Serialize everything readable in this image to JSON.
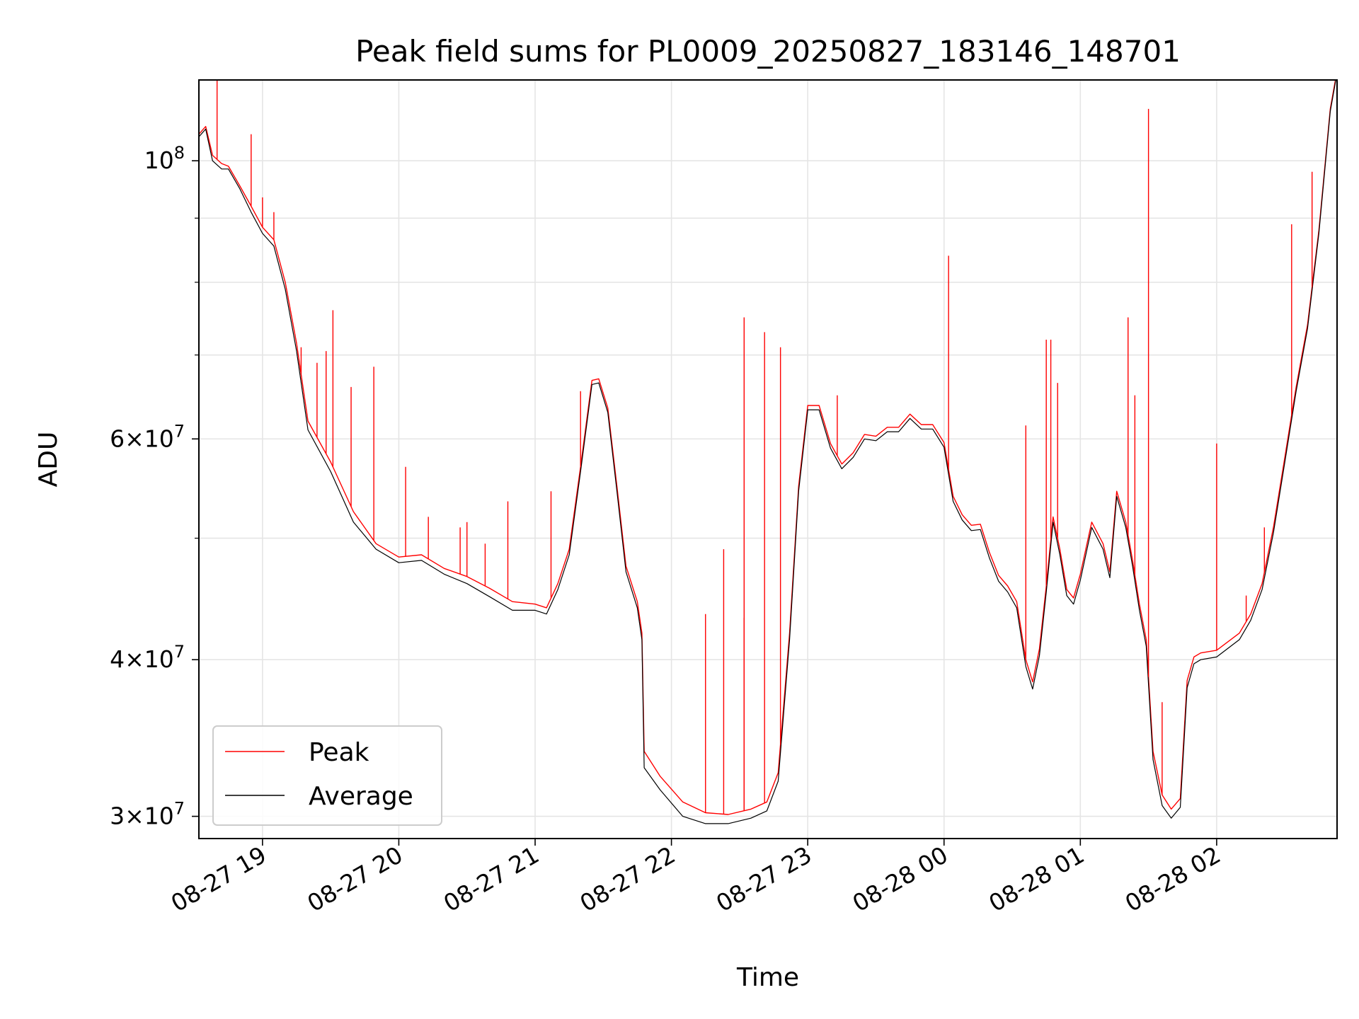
{
  "chart_data": {
    "type": "line",
    "title": "Peak field sums for PL0009_20250827_183146_148701",
    "xlabel": "Time",
    "ylabel": "ADU",
    "y_scale": "log",
    "ylim": [
      28800000,
      116000000
    ],
    "xlim": [
      "2025-08-27 18:32",
      "2025-08-28 02:53"
    ],
    "grid": true,
    "legend_placement": "lower-left",
    "x_ticks": [
      {
        "at": "2025-08-27 19:00",
        "label": "08-27 19"
      },
      {
        "at": "2025-08-27 20:00",
        "label": "08-27 20"
      },
      {
        "at": "2025-08-27 21:00",
        "label": "08-27 21"
      },
      {
        "at": "2025-08-27 22:00",
        "label": "08-27 22"
      },
      {
        "at": "2025-08-27 23:00",
        "label": "08-27 23"
      },
      {
        "at": "2025-08-28 00:00",
        "label": "08-28 00"
      },
      {
        "at": "2025-08-28 01:00",
        "label": "08-28 01"
      },
      {
        "at": "2025-08-28 02:00",
        "label": "08-28 02"
      }
    ],
    "y_ticks_major": [
      {
        "value": 100000000,
        "base": "10",
        "exp": "8"
      },
      {
        "value": 60000000,
        "mant": "6",
        "base": "10",
        "exp": "7"
      },
      {
        "value": 40000000,
        "mant": "4",
        "base": "10",
        "exp": "7"
      },
      {
        "value": 30000000,
        "mant": "3",
        "base": "10",
        "exp": "7"
      }
    ],
    "y_ticks_minor": [
      90000000,
      80000000,
      70000000,
      50000000
    ],
    "series": [
      {
        "name": "Peak",
        "color": "#ff0000",
        "x": [
          "2025-08-27 18:32",
          "2025-08-27 18:35",
          "2025-08-27 18:38",
          "2025-08-27 18:42",
          "2025-08-27 18:45",
          "2025-08-27 18:50",
          "2025-08-27 18:55",
          "2025-08-27 19:00",
          "2025-08-27 19:05",
          "2025-08-27 19:10",
          "2025-08-27 19:15",
          "2025-08-27 19:20",
          "2025-08-27 19:30",
          "2025-08-27 19:40",
          "2025-08-27 19:50",
          "2025-08-27 20:00",
          "2025-08-27 20:10",
          "2025-08-27 20:20",
          "2025-08-27 20:30",
          "2025-08-27 20:40",
          "2025-08-27 20:50",
          "2025-08-27 21:00",
          "2025-08-27 21:05",
          "2025-08-27 21:10",
          "2025-08-27 21:15",
          "2025-08-27 21:20",
          "2025-08-27 21:25",
          "2025-08-27 21:28",
          "2025-08-27 21:32",
          "2025-08-27 21:36",
          "2025-08-27 21:40",
          "2025-08-27 21:45",
          "2025-08-27 21:47",
          "2025-08-27 21:48",
          "2025-08-27 21:55",
          "2025-08-27 22:05",
          "2025-08-27 22:15",
          "2025-08-27 22:25",
          "2025-08-27 22:35",
          "2025-08-27 22:42",
          "2025-08-27 22:47",
          "2025-08-27 22:52",
          "2025-08-27 22:56",
          "2025-08-27 23:00",
          "2025-08-27 23:05",
          "2025-08-27 23:10",
          "2025-08-27 23:15",
          "2025-08-27 23:20",
          "2025-08-27 23:25",
          "2025-08-27 23:30",
          "2025-08-27 23:35",
          "2025-08-27 23:40",
          "2025-08-27 23:45",
          "2025-08-27 23:50",
          "2025-08-27 23:55",
          "2025-08-28 00:00",
          "2025-08-28 00:04",
          "2025-08-28 00:08",
          "2025-08-28 00:12",
          "2025-08-28 00:16",
          "2025-08-28 00:20",
          "2025-08-28 00:24",
          "2025-08-28 00:28",
          "2025-08-28 00:32",
          "2025-08-28 00:36",
          "2025-08-28 00:39",
          "2025-08-28 00:42",
          "2025-08-28 00:45",
          "2025-08-28 00:48",
          "2025-08-28 00:51",
          "2025-08-28 00:54",
          "2025-08-28 00:57",
          "2025-08-28 01:00",
          "2025-08-28 01:05",
          "2025-08-28 01:10",
          "2025-08-28 01:13",
          "2025-08-28 01:16",
          "2025-08-28 01:20",
          "2025-08-28 01:23",
          "2025-08-28 01:26",
          "2025-08-28 01:29",
          "2025-08-28 01:32",
          "2025-08-28 01:36",
          "2025-08-28 01:40",
          "2025-08-28 01:44",
          "2025-08-28 01:47",
          "2025-08-28 01:50",
          "2025-08-28 01:53",
          "2025-08-28 02:00",
          "2025-08-28 02:10",
          "2025-08-28 02:15",
          "2025-08-28 02:20",
          "2025-08-28 02:25",
          "2025-08-28 02:30",
          "2025-08-28 02:35",
          "2025-08-28 02:40",
          "2025-08-28 02:45",
          "2025-08-28 02:50",
          "2025-08-28 02:53"
        ],
        "y": [
          105000000,
          106500000,
          101000000,
          99500000,
          99000000,
          95500000,
          92000000,
          88500000,
          86500000,
          80000000,
          71500000,
          62000000,
          57500000,
          52500000,
          49500000,
          48300000,
          48500000,
          47300000,
          46600000,
          45600000,
          44500000,
          44300000,
          44000000,
          46000000,
          49000000,
          57000000,
          66800000,
          67000000,
          63500000,
          55000000,
          47500000,
          44500000,
          42000000,
          33800000,
          32300000,
          30800000,
          30200000,
          30100000,
          30400000,
          30800000,
          32500000,
          42000000,
          55000000,
          63800000,
          63800000,
          59500000,
          57300000,
          58500000,
          60500000,
          60300000,
          61300000,
          61300000,
          62800000,
          61600000,
          61600000,
          59600000,
          54000000,
          52200000,
          51200000,
          51300000,
          48700000,
          46700000,
          45800000,
          44500000,
          40000000,
          38400000,
          40800000,
          45800000,
          52000000,
          49000000,
          45500000,
          44800000,
          46800000,
          51500000,
          49500000,
          47000000,
          54500000,
          51500000,
          48000000,
          44300000,
          41500000,
          33800000,
          31200000,
          30400000,
          31000000,
          38500000,
          40200000,
          40500000,
          40700000,
          42000000,
          43500000,
          46000000,
          51000000,
          58000000,
          66000000,
          74000000,
          88000000,
          110000000,
          118000000
        ]
      },
      {
        "name": "Average",
        "color": "#000000",
        "x": [
          "2025-08-27 18:32",
          "2025-08-27 18:35",
          "2025-08-27 18:38",
          "2025-08-27 18:42",
          "2025-08-27 18:45",
          "2025-08-27 18:50",
          "2025-08-27 18:55",
          "2025-08-27 19:00",
          "2025-08-27 19:05",
          "2025-08-27 19:10",
          "2025-08-27 19:15",
          "2025-08-27 19:20",
          "2025-08-27 19:30",
          "2025-08-27 19:40",
          "2025-08-27 19:50",
          "2025-08-27 20:00",
          "2025-08-27 20:10",
          "2025-08-27 20:20",
          "2025-08-27 20:30",
          "2025-08-27 20:40",
          "2025-08-27 20:50",
          "2025-08-27 21:00",
          "2025-08-27 21:05",
          "2025-08-27 21:10",
          "2025-08-27 21:15",
          "2025-08-27 21:20",
          "2025-08-27 21:25",
          "2025-08-27 21:28",
          "2025-08-27 21:32",
          "2025-08-27 21:36",
          "2025-08-27 21:40",
          "2025-08-27 21:45",
          "2025-08-27 21:47",
          "2025-08-27 21:48",
          "2025-08-27 21:55",
          "2025-08-27 22:05",
          "2025-08-27 22:15",
          "2025-08-27 22:25",
          "2025-08-27 22:35",
          "2025-08-27 22:42",
          "2025-08-27 22:47",
          "2025-08-27 22:52",
          "2025-08-27 22:56",
          "2025-08-27 23:00",
          "2025-08-27 23:05",
          "2025-08-27 23:10",
          "2025-08-27 23:15",
          "2025-08-27 23:20",
          "2025-08-27 23:25",
          "2025-08-27 23:30",
          "2025-08-27 23:35",
          "2025-08-27 23:40",
          "2025-08-27 23:45",
          "2025-08-27 23:50",
          "2025-08-27 23:55",
          "2025-08-28 00:00",
          "2025-08-28 00:04",
          "2025-08-28 00:08",
          "2025-08-28 00:12",
          "2025-08-28 00:16",
          "2025-08-28 00:20",
          "2025-08-28 00:24",
          "2025-08-28 00:28",
          "2025-08-28 00:32",
          "2025-08-28 00:36",
          "2025-08-28 00:39",
          "2025-08-28 00:42",
          "2025-08-28 00:45",
          "2025-08-28 00:48",
          "2025-08-28 00:51",
          "2025-08-28 00:54",
          "2025-08-28 00:57",
          "2025-08-28 01:00",
          "2025-08-28 01:05",
          "2025-08-28 01:10",
          "2025-08-28 01:13",
          "2025-08-28 01:16",
          "2025-08-28 01:20",
          "2025-08-28 01:23",
          "2025-08-28 01:26",
          "2025-08-28 01:29",
          "2025-08-28 01:32",
          "2025-08-28 01:36",
          "2025-08-28 01:40",
          "2025-08-28 01:44",
          "2025-08-28 01:47",
          "2025-08-28 01:50",
          "2025-08-28 01:53",
          "2025-08-28 02:00",
          "2025-08-28 02:10",
          "2025-08-28 02:15",
          "2025-08-28 02:20",
          "2025-08-28 02:25",
          "2025-08-28 02:30",
          "2025-08-28 02:35",
          "2025-08-28 02:40",
          "2025-08-28 02:45",
          "2025-08-28 02:50",
          "2025-08-28 02:53"
        ],
        "y": [
          104500000,
          106000000,
          100000000,
          98500000,
          98500000,
          95000000,
          91000000,
          87500000,
          85500000,
          79000000,
          70500000,
          61000000,
          56500000,
          51500000,
          49000000,
          47800000,
          48000000,
          46800000,
          46000000,
          44900000,
          43800000,
          43800000,
          43500000,
          45500000,
          48500000,
          56500000,
          66300000,
          66500000,
          63000000,
          54500000,
          47000000,
          44000000,
          41500000,
          32800000,
          31500000,
          30000000,
          29600000,
          29600000,
          29900000,
          30300000,
          32000000,
          41500000,
          54500000,
          63300000,
          63300000,
          59000000,
          56800000,
          58000000,
          60000000,
          59800000,
          60800000,
          60800000,
          62300000,
          61100000,
          61100000,
          59100000,
          53500000,
          51700000,
          50700000,
          50800000,
          48200000,
          46200000,
          45300000,
          44000000,
          39500000,
          37900000,
          40300000,
          45300000,
          51500000,
          48500000,
          45000000,
          44300000,
          46300000,
          51000000,
          49000000,
          46500000,
          54000000,
          51000000,
          47500000,
          43800000,
          41000000,
          33300000,
          30600000,
          29900000,
          30500000,
          38000000,
          39700000,
          40000000,
          40200000,
          41500000,
          43000000,
          45500000,
          50500000,
          57500000,
          65500000,
          73500000,
          87500000,
          109500000,
          117500000
        ]
      }
    ],
    "peak_spikes": [
      {
        "x": "2025-08-27 18:40",
        "y": 116000000
      },
      {
        "x": "2025-08-27 18:55",
        "y": 105000000
      },
      {
        "x": "2025-08-27 19:00",
        "y": 93500000
      },
      {
        "x": "2025-08-27 19:05",
        "y": 91000000
      },
      {
        "x": "2025-08-27 19:17",
        "y": 71000000
      },
      {
        "x": "2025-08-27 19:24",
        "y": 69000000
      },
      {
        "x": "2025-08-27 19:28",
        "y": 70500000
      },
      {
        "x": "2025-08-27 19:31",
        "y": 76000000
      },
      {
        "x": "2025-08-27 19:39",
        "y": 66000000
      },
      {
        "x": "2025-08-27 19:49",
        "y": 68500000
      },
      {
        "x": "2025-08-27 20:03",
        "y": 57000000
      },
      {
        "x": "2025-08-27 20:13",
        "y": 52000000
      },
      {
        "x": "2025-08-27 20:27",
        "y": 51000000
      },
      {
        "x": "2025-08-27 20:30",
        "y": 51500000
      },
      {
        "x": "2025-08-27 20:38",
        "y": 49500000
      },
      {
        "x": "2025-08-27 20:48",
        "y": 53500000
      },
      {
        "x": "2025-08-27 21:07",
        "y": 54500000
      },
      {
        "x": "2025-08-27 21:20",
        "y": 65500000
      },
      {
        "x": "2025-08-27 22:15",
        "y": 43500000
      },
      {
        "x": "2025-08-27 22:23",
        "y": 49000000
      },
      {
        "x": "2025-08-27 22:32",
        "y": 43200000
      },
      {
        "x": "2025-08-27 22:32",
        "y": 75000000
      },
      {
        "x": "2025-08-27 22:41",
        "y": 73000000
      },
      {
        "x": "2025-08-27 22:48",
        "y": 71000000
      },
      {
        "x": "2025-08-27 23:13",
        "y": 65000000
      },
      {
        "x": "2025-08-28 00:02",
        "y": 84000000
      },
      {
        "x": "2025-08-28 00:36",
        "y": 61500000
      },
      {
        "x": "2025-08-28 00:45",
        "y": 72000000
      },
      {
        "x": "2025-08-28 00:47",
        "y": 72000000
      },
      {
        "x": "2025-08-28 00:50",
        "y": 66500000
      },
      {
        "x": "2025-08-28 01:21",
        "y": 75000000
      },
      {
        "x": "2025-08-28 01:24",
        "y": 65000000
      },
      {
        "x": "2025-08-28 01:30",
        "y": 110000000
      },
      {
        "x": "2025-08-28 01:36",
        "y": 37000000
      },
      {
        "x": "2025-08-28 02:00",
        "y": 59500000
      },
      {
        "x": "2025-08-28 02:13",
        "y": 45000000
      },
      {
        "x": "2025-08-28 02:21",
        "y": 51000000
      },
      {
        "x": "2025-08-28 02:33",
        "y": 89000000
      },
      {
        "x": "2025-08-28 02:42",
        "y": 98000000
      }
    ]
  }
}
